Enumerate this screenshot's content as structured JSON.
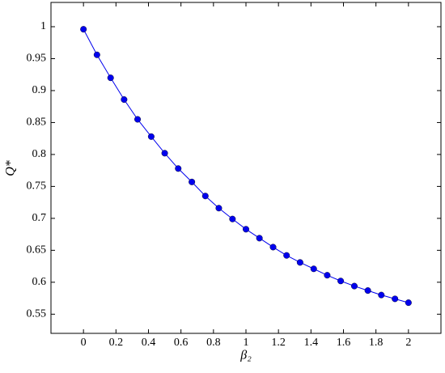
{
  "chart_data": {
    "type": "line",
    "xlabel": "β₂",
    "ylabel": "Q*",
    "x": [
      0,
      0.083,
      0.167,
      0.25,
      0.333,
      0.417,
      0.5,
      0.583,
      0.667,
      0.75,
      0.833,
      0.917,
      1.0,
      1.083,
      1.167,
      1.25,
      1.333,
      1.417,
      1.5,
      1.583,
      1.667,
      1.75,
      1.833,
      1.917,
      2.0
    ],
    "series": [
      {
        "color": "#0000ee",
        "values": [
          0.996,
          0.956,
          0.92,
          0.886,
          0.855,
          0.828,
          0.802,
          0.778,
          0.757,
          0.735,
          0.716,
          0.699,
          0.683,
          0.669,
          0.655,
          0.642,
          0.631,
          0.621,
          0.611,
          0.602,
          0.594,
          0.587,
          0.58,
          0.574,
          0.568
        ]
      }
    ],
    "xlim": [
      -0.2,
      2.2
    ],
    "ylim": [
      0.52,
      1.038
    ],
    "xticks": [
      0,
      0.2,
      0.4,
      0.6,
      0.8,
      1,
      1.2,
      1.4,
      1.6,
      1.8,
      2
    ],
    "yticks": [
      0.55,
      0.6,
      0.65,
      0.7,
      0.75,
      0.8,
      0.85,
      0.9,
      0.95,
      1
    ]
  }
}
